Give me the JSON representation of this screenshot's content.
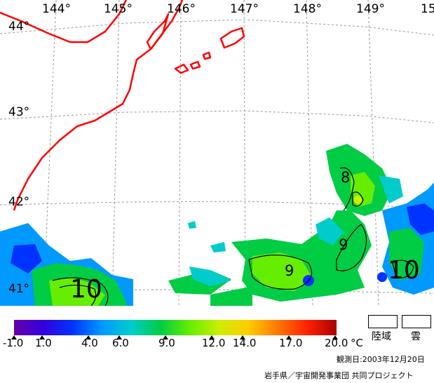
{
  "map": {
    "longitude_labels": [
      "144°",
      "145°",
      "146°",
      "147°",
      "148°",
      "149°",
      "15"
    ],
    "latitude_labels": [
      "44°",
      "43°",
      "42°",
      "41°"
    ],
    "contour_labels": [
      "8",
      "9",
      "9",
      "10",
      "10"
    ],
    "coastline_color": "#ff0000",
    "grid_color": "#9a9a9a"
  },
  "colorbar": {
    "tick_labels": [
      "-1.0",
      "1.0",
      "4.0",
      "6.0",
      "9.0",
      "12.0",
      "14.0",
      "17.0",
      "20.0"
    ],
    "unit": "°C",
    "colors": [
      "#6600aa",
      "#3300dd",
      "#0033ff",
      "#0099ff",
      "#00cccc",
      "#00cc44",
      "#66ee00",
      "#ccee00",
      "#ffcc00",
      "#ff7700",
      "#ff2200",
      "#aa0000"
    ]
  },
  "legend": {
    "land_label": "陸域",
    "cloud_label": "雲"
  },
  "footer": {
    "observation_date": "観測日:2003年12月20日",
    "credit": "岩手県／宇宙開発事業団 共同プロジェクト"
  }
}
